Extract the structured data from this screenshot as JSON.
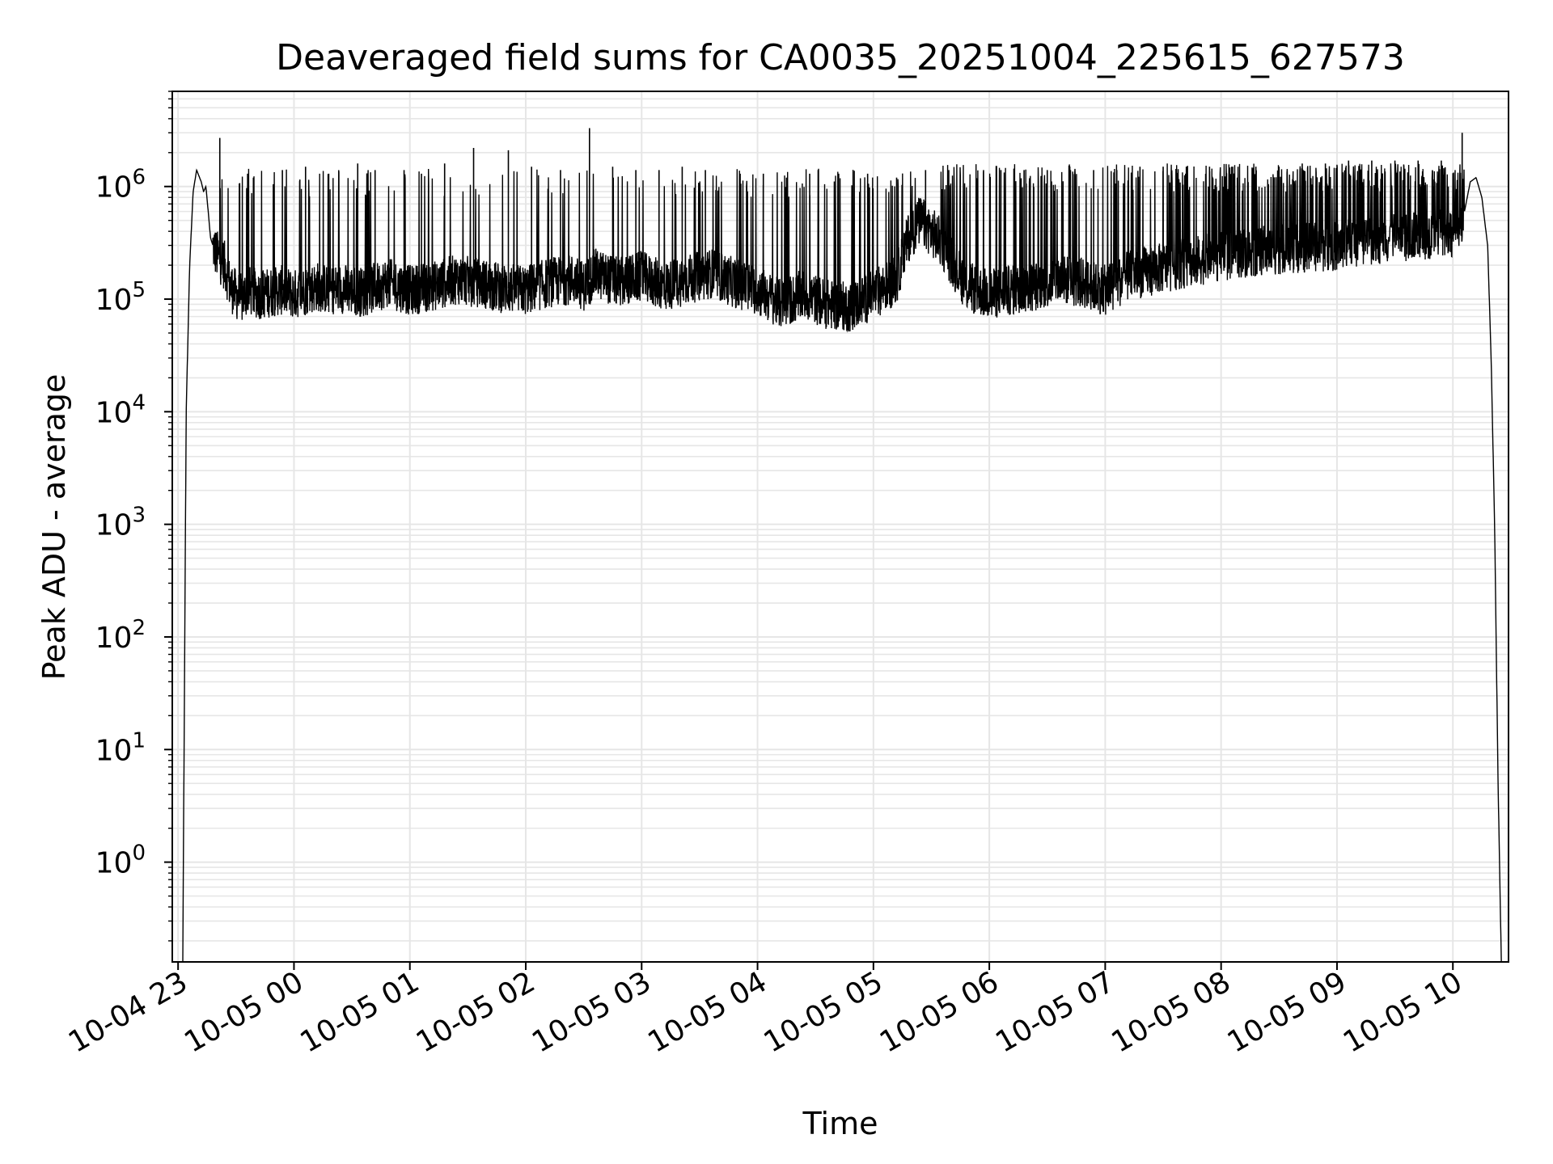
{
  "chart_data": {
    "type": "line",
    "title": "Deaveraged field sums for CA0035_20251004_225615_627573",
    "xlabel": "Time",
    "ylabel": "Peak ADU - average",
    "yscale": "log",
    "ylim": [
      0.13,
      7000000
    ],
    "xlim_hours": [
      -0.05,
      11.48
    ],
    "grid": true,
    "grid_color": "#e6e6e6",
    "line_color": "#000000",
    "x_ticks": [
      {
        "label": "10-04 23",
        "hour": 0
      },
      {
        "label": "10-05 00",
        "hour": 1
      },
      {
        "label": "10-05 01",
        "hour": 2
      },
      {
        "label": "10-05 02",
        "hour": 3
      },
      {
        "label": "10-05 03",
        "hour": 4
      },
      {
        "label": "10-05 04",
        "hour": 5
      },
      {
        "label": "10-05 05",
        "hour": 6
      },
      {
        "label": "10-05 06",
        "hour": 7
      },
      {
        "label": "10-05 07",
        "hour": 8
      },
      {
        "label": "10-05 08",
        "hour": 9
      },
      {
        "label": "10-05 09",
        "hour": 10
      },
      {
        "label": "10-05 10",
        "hour": 11
      }
    ],
    "y_ticks": [
      {
        "base": "10",
        "exp": "0",
        "value": 1
      },
      {
        "base": "10",
        "exp": "1",
        "value": 10
      },
      {
        "base": "10",
        "exp": "2",
        "value": 100
      },
      {
        "base": "10",
        "exp": "3",
        "value": 1000
      },
      {
        "base": "10",
        "exp": "4",
        "value": 10000
      },
      {
        "base": "10",
        "exp": "5",
        "value": 100000
      },
      {
        "base": "10",
        "exp": "6",
        "value": 1000000
      }
    ],
    "series": [
      {
        "name": "field sums",
        "x_hours": [
          0.04,
          0.05,
          0.07,
          0.1,
          0.13,
          0.16,
          0.2,
          0.22,
          0.24,
          0.26,
          0.28,
          0.3,
          0.33,
          0.36,
          0.4,
          0.45,
          0.5,
          0.55,
          0.6,
          0.7,
          0.8,
          0.9,
          1.0,
          1.2,
          1.3,
          1.4,
          1.6,
          1.8,
          2.0,
          2.2,
          2.4,
          2.6,
          2.8,
          3.0,
          3.2,
          3.4,
          3.5,
          3.6,
          3.8,
          4.0,
          4.2,
          4.4,
          4.6,
          4.8,
          5.0,
          5.2,
          5.4,
          5.6,
          5.8,
          6.0,
          6.2,
          6.3,
          6.4,
          6.5,
          6.6,
          6.8,
          7.0,
          7.2,
          7.4,
          7.6,
          7.8,
          8.0,
          8.2,
          8.4,
          8.6,
          8.8,
          9.0,
          9.2,
          9.4,
          9.6,
          9.8,
          10.0,
          10.2,
          10.4,
          10.6,
          10.8,
          11.0,
          11.1,
          11.15,
          11.2,
          11.25,
          11.3,
          11.33,
          11.36,
          11.39,
          11.42
        ],
        "y_values": [
          0.1,
          5,
          10000,
          200000,
          900000,
          1400000,
          1100000,
          900000,
          1000000,
          600000,
          350000,
          300000,
          250000,
          230000,
          200000,
          130000,
          110000,
          100000,
          120000,
          110000,
          115000,
          120000,
          110000,
          130000,
          120000,
          125000,
          115000,
          140000,
          120000,
          130000,
          150000,
          140000,
          125000,
          120000,
          140000,
          150000,
          130000,
          170000,
          140000,
          160000,
          130000,
          150000,
          170000,
          140000,
          120000,
          90000,
          110000,
          90000,
          85000,
          110000,
          150000,
          350000,
          500000,
          400000,
          300000,
          130000,
          110000,
          120000,
          130000,
          150000,
          140000,
          120000,
          160000,
          180000,
          200000,
          220000,
          240000,
          260000,
          270000,
          280000,
          290000,
          300000,
          330000,
          340000,
          350000,
          380000,
          400000,
          600000,
          1100000,
          1200000,
          800000,
          300000,
          30000,
          1000,
          5,
          0.1
        ],
        "spikes_hours": [
          0.36,
          0.6,
          0.65,
          0.9,
          1.1,
          1.3,
          1.55,
          1.7,
          1.95,
          2.1,
          2.3,
          2.55,
          2.85,
          3.05,
          3.3,
          3.55,
          3.75,
          3.95,
          4.15,
          4.35,
          4.55,
          4.85,
          5.05,
          5.25,
          5.45,
          5.7,
          5.95,
          6.2,
          6.45,
          6.65,
          6.95,
          7.1,
          7.3,
          7.5,
          7.7,
          7.9,
          8.1,
          8.3,
          8.5,
          8.7,
          8.9,
          9.1,
          9.3,
          9.5,
          9.7,
          9.9,
          10.1,
          10.3,
          10.5,
          10.7,
          10.9,
          11.08
        ],
        "spikes_values": [
          2700000,
          1300000,
          1200000,
          1400000,
          1500000,
          1300000,
          1600000,
          1400000,
          1400000,
          1300000,
          1600000,
          2200000,
          2100000,
          1500000,
          1400000,
          3300000,
          1500000,
          1400000,
          1400000,
          1500000,
          1400000,
          1300000,
          1300000,
          1200000,
          1300000,
          1300000,
          1300000,
          1200000,
          1400000,
          1400000,
          1400000,
          1400000,
          1400000,
          1400000,
          1400000,
          1400000,
          1400000,
          1500000,
          1500000,
          1500000,
          1500000,
          1500000,
          1500000,
          1500000,
          1600000,
          1600000,
          1700000,
          1700000,
          1700000,
          1700000,
          1700000,
          3000000
        ]
      }
    ]
  }
}
